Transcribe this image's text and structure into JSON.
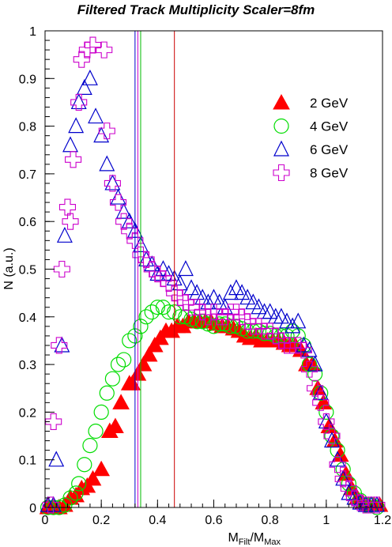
{
  "chart_data": {
    "type": "scatter",
    "title": "Filtered Track Multiplicity Scaler=8fm",
    "xlabel_main": "M",
    "xlabel_sub1": "Filt",
    "xlabel_sep": "/M",
    "xlabel_sub2": "Max",
    "ylabel": "N (a.u.)",
    "xlim": [
      0,
      1.2
    ],
    "ylim": [
      0,
      1
    ],
    "xticks": [
      {
        "v": 0,
        "label": "0"
      },
      {
        "v": 0.2,
        "label": "0.2"
      },
      {
        "v": 0.4,
        "label": "0.4"
      },
      {
        "v": 0.6,
        "label": "0.6"
      },
      {
        "v": 0.8,
        "label": "0.8"
      },
      {
        "v": 1,
        "label": "1"
      },
      {
        "v": 1.2,
        "label": "1.2"
      }
    ],
    "yticks": [
      {
        "v": 0,
        "label": "0"
      },
      {
        "v": 0.1,
        "label": "0.1"
      },
      {
        "v": 0.2,
        "label": "0.2"
      },
      {
        "v": 0.3,
        "label": "0.3"
      },
      {
        "v": 0.4,
        "label": "0.4"
      },
      {
        "v": 0.5,
        "label": "0.5"
      },
      {
        "v": 0.6,
        "label": "0.6"
      },
      {
        "v": 0.7,
        "label": "0.7"
      },
      {
        "v": 0.8,
        "label": "0.8"
      },
      {
        "v": 0.9,
        "label": "0.9"
      },
      {
        "v": 1,
        "label": "1"
      }
    ],
    "grid": false,
    "legend_position": "top-right",
    "vlines": [
      {
        "x": 0.32,
        "color": "#0000cc"
      },
      {
        "x": 0.33,
        "color": "#cc00cc"
      },
      {
        "x": 0.34,
        "color": "#00bb00"
      },
      {
        "x": 0.46,
        "color": "#cc0000"
      }
    ],
    "series": [
      {
        "name": "2 GeV",
        "marker": "filled-triangle",
        "color": "#ff0000",
        "points": [
          [
            0.01,
            0
          ],
          [
            0.03,
            0
          ],
          [
            0.05,
            0
          ],
          [
            0.07,
            0.005
          ],
          [
            0.09,
            0.02
          ],
          [
            0.11,
            0.025
          ],
          [
            0.13,
            0.04
          ],
          [
            0.15,
            0.045
          ],
          [
            0.17,
            0.06
          ],
          [
            0.2,
            0.08
          ],
          [
            0.23,
            0.16
          ],
          [
            0.25,
            0.17
          ],
          [
            0.27,
            0.22
          ],
          [
            0.3,
            0.26
          ],
          [
            0.31,
            0.26
          ],
          [
            0.33,
            0.28
          ],
          [
            0.35,
            0.3
          ],
          [
            0.37,
            0.32
          ],
          [
            0.39,
            0.34
          ],
          [
            0.41,
            0.355
          ],
          [
            0.43,
            0.37
          ],
          [
            0.45,
            0.37
          ],
          [
            0.47,
            0.38
          ],
          [
            0.49,
            0.38
          ],
          [
            0.51,
            0.39
          ],
          [
            0.53,
            0.39
          ],
          [
            0.55,
            0.39
          ],
          [
            0.57,
            0.39
          ],
          [
            0.59,
            0.39
          ],
          [
            0.61,
            0.385
          ],
          [
            0.63,
            0.38
          ],
          [
            0.65,
            0.38
          ],
          [
            0.67,
            0.375
          ],
          [
            0.69,
            0.37
          ],
          [
            0.71,
            0.36
          ],
          [
            0.73,
            0.355
          ],
          [
            0.75,
            0.36
          ],
          [
            0.77,
            0.35
          ],
          [
            0.79,
            0.35
          ],
          [
            0.81,
            0.35
          ],
          [
            0.83,
            0.35
          ],
          [
            0.85,
            0.345
          ],
          [
            0.87,
            0.34
          ],
          [
            0.89,
            0.34
          ],
          [
            0.91,
            0.33
          ],
          [
            0.93,
            0.3
          ],
          [
            0.95,
            0.3
          ],
          [
            0.97,
            0.25
          ],
          [
            0.99,
            0.22
          ],
          [
            1.01,
            0.17
          ],
          [
            1.03,
            0.14
          ],
          [
            1.05,
            0.11
          ],
          [
            1.07,
            0.07
          ],
          [
            1.09,
            0.04
          ],
          [
            1.11,
            0.02
          ],
          [
            1.13,
            0.01
          ],
          [
            1.15,
            0.005
          ],
          [
            1.17,
            0.005
          ],
          [
            1.19,
            0.005
          ]
        ]
      },
      {
        "name": "4 GeV",
        "marker": "open-circle",
        "color": "#00dd00",
        "points": [
          [
            0.01,
            0
          ],
          [
            0.03,
            0
          ],
          [
            0.05,
            0
          ],
          [
            0.07,
            0.005
          ],
          [
            0.09,
            0.02
          ],
          [
            0.11,
            0.03
          ],
          [
            0.12,
            0.05
          ],
          [
            0.14,
            0.09
          ],
          [
            0.16,
            0.13
          ],
          [
            0.18,
            0.16
          ],
          [
            0.2,
            0.2
          ],
          [
            0.22,
            0.24
          ],
          [
            0.24,
            0.27
          ],
          [
            0.26,
            0.3
          ],
          [
            0.28,
            0.31
          ],
          [
            0.3,
            0.35
          ],
          [
            0.32,
            0.36
          ],
          [
            0.34,
            0.38
          ],
          [
            0.36,
            0.4
          ],
          [
            0.38,
            0.41
          ],
          [
            0.4,
            0.42
          ],
          [
            0.42,
            0.42
          ],
          [
            0.44,
            0.41
          ],
          [
            0.46,
            0.41
          ],
          [
            0.48,
            0.4
          ],
          [
            0.5,
            0.4
          ],
          [
            0.52,
            0.395
          ],
          [
            0.54,
            0.39
          ],
          [
            0.56,
            0.39
          ],
          [
            0.58,
            0.385
          ],
          [
            0.6,
            0.38
          ],
          [
            0.62,
            0.385
          ],
          [
            0.64,
            0.385
          ],
          [
            0.66,
            0.38
          ],
          [
            0.68,
            0.38
          ],
          [
            0.7,
            0.375
          ],
          [
            0.72,
            0.37
          ],
          [
            0.74,
            0.37
          ],
          [
            0.76,
            0.37
          ],
          [
            0.78,
            0.365
          ],
          [
            0.8,
            0.365
          ],
          [
            0.82,
            0.36
          ],
          [
            0.84,
            0.36
          ],
          [
            0.86,
            0.36
          ],
          [
            0.88,
            0.37
          ],
          [
            0.9,
            0.36
          ],
          [
            0.92,
            0.34
          ],
          [
            0.94,
            0.3
          ],
          [
            0.96,
            0.28
          ],
          [
            0.98,
            0.24
          ],
          [
            1,
            0.2
          ],
          [
            1.02,
            0.15
          ],
          [
            1.04,
            0.12
          ],
          [
            1.06,
            0.08
          ],
          [
            1.08,
            0.05
          ],
          [
            1.1,
            0.03
          ],
          [
            1.12,
            0.015
          ],
          [
            1.14,
            0.005
          ],
          [
            1.16,
            0.005
          ],
          [
            1.18,
            0
          ]
        ]
      },
      {
        "name": "6 GeV",
        "marker": "open-triangle",
        "color": "#0000cc",
        "points": [
          [
            0.01,
            0.005
          ],
          [
            0.03,
            0.005
          ],
          [
            0.04,
            0.1
          ],
          [
            0.06,
            0.34
          ],
          [
            0.07,
            0.57
          ],
          [
            0.09,
            0.76
          ],
          [
            0.11,
            0.8
          ],
          [
            0.12,
            0.85
          ],
          [
            0.14,
            0.88
          ],
          [
            0.16,
            0.9
          ],
          [
            0.18,
            0.82
          ],
          [
            0.2,
            0.78
          ],
          [
            0.22,
            0.72
          ],
          [
            0.24,
            0.68
          ],
          [
            0.26,
            0.65
          ],
          [
            0.28,
            0.62
          ],
          [
            0.3,
            0.6
          ],
          [
            0.32,
            0.58
          ],
          [
            0.34,
            0.55
          ],
          [
            0.36,
            0.52
          ],
          [
            0.38,
            0.51
          ],
          [
            0.4,
            0.49
          ],
          [
            0.42,
            0.5
          ],
          [
            0.44,
            0.49
          ],
          [
            0.46,
            0.48
          ],
          [
            0.48,
            0.47
          ],
          [
            0.5,
            0.5
          ],
          [
            0.52,
            0.46
          ],
          [
            0.54,
            0.45
          ],
          [
            0.56,
            0.44
          ],
          [
            0.58,
            0.43
          ],
          [
            0.6,
            0.44
          ],
          [
            0.62,
            0.43
          ],
          [
            0.64,
            0.42
          ],
          [
            0.66,
            0.45
          ],
          [
            0.68,
            0.46
          ],
          [
            0.7,
            0.45
          ],
          [
            0.72,
            0.44
          ],
          [
            0.74,
            0.43
          ],
          [
            0.76,
            0.42
          ],
          [
            0.78,
            0.41
          ],
          [
            0.8,
            0.41
          ],
          [
            0.82,
            0.4
          ],
          [
            0.84,
            0.4
          ],
          [
            0.86,
            0.39
          ],
          [
            0.88,
            0.38
          ],
          [
            0.9,
            0.39
          ],
          [
            0.92,
            0.34
          ],
          [
            0.94,
            0.33
          ],
          [
            0.96,
            0.3
          ],
          [
            0.98,
            0.24
          ],
          [
            1,
            0.18
          ],
          [
            1.02,
            0.14
          ],
          [
            1.04,
            0.1
          ],
          [
            1.06,
            0.06
          ],
          [
            1.08,
            0.03
          ],
          [
            1.1,
            0.02
          ],
          [
            1.12,
            0.01
          ],
          [
            1.14,
            0.005
          ],
          [
            1.16,
            0.005
          ],
          [
            1.18,
            0.005
          ]
        ]
      },
      {
        "name": "8 GeV",
        "marker": "open-cross",
        "color": "#cc00cc",
        "points": [
          [
            0.02,
            0.005
          ],
          [
            0.03,
            0.18
          ],
          [
            0.05,
            0.34
          ],
          [
            0.06,
            0.5
          ],
          [
            0.08,
            0.63
          ],
          [
            0.09,
            0.6
          ],
          [
            0.1,
            0.73
          ],
          [
            0.12,
            0.85
          ],
          [
            0.13,
            0.94
          ],
          [
            0.15,
            0.96
          ],
          [
            0.17,
            0.97
          ],
          [
            0.21,
            0.96
          ],
          [
            0.22,
            0.79
          ],
          [
            0.24,
            0.68
          ],
          [
            0.26,
            0.64
          ],
          [
            0.28,
            0.6
          ],
          [
            0.3,
            0.58
          ],
          [
            0.32,
            0.56
          ],
          [
            0.34,
            0.53
          ],
          [
            0.36,
            0.52
          ],
          [
            0.38,
            0.5
          ],
          [
            0.4,
            0.49
          ],
          [
            0.42,
            0.48
          ],
          [
            0.44,
            0.47
          ],
          [
            0.46,
            0.45
          ],
          [
            0.48,
            0.44
          ],
          [
            0.5,
            0.43
          ],
          [
            0.52,
            0.42
          ],
          [
            0.54,
            0.42
          ],
          [
            0.56,
            0.41
          ],
          [
            0.58,
            0.4
          ],
          [
            0.6,
            0.41
          ],
          [
            0.62,
            0.4
          ],
          [
            0.64,
            0.4
          ],
          [
            0.66,
            0.41
          ],
          [
            0.68,
            0.41
          ],
          [
            0.7,
            0.4
          ],
          [
            0.72,
            0.39
          ],
          [
            0.74,
            0.38
          ],
          [
            0.76,
            0.38
          ],
          [
            0.78,
            0.37
          ],
          [
            0.8,
            0.37
          ],
          [
            0.82,
            0.36
          ],
          [
            0.84,
            0.35
          ],
          [
            0.86,
            0.34
          ],
          [
            0.88,
            0.34
          ],
          [
            0.9,
            0.34
          ],
          [
            0.92,
            0.33
          ],
          [
            0.94,
            0.29
          ],
          [
            0.96,
            0.25
          ],
          [
            0.98,
            0.22
          ],
          [
            1,
            0.18
          ],
          [
            1.02,
            0.15
          ],
          [
            1.04,
            0.09
          ],
          [
            1.06,
            0.06
          ],
          [
            1.08,
            0.04
          ],
          [
            1.1,
            0.02
          ],
          [
            1.12,
            0.01
          ],
          [
            1.14,
            0.005
          ],
          [
            1.16,
            0.005
          ],
          [
            1.18,
            0.005
          ]
        ]
      }
    ]
  }
}
